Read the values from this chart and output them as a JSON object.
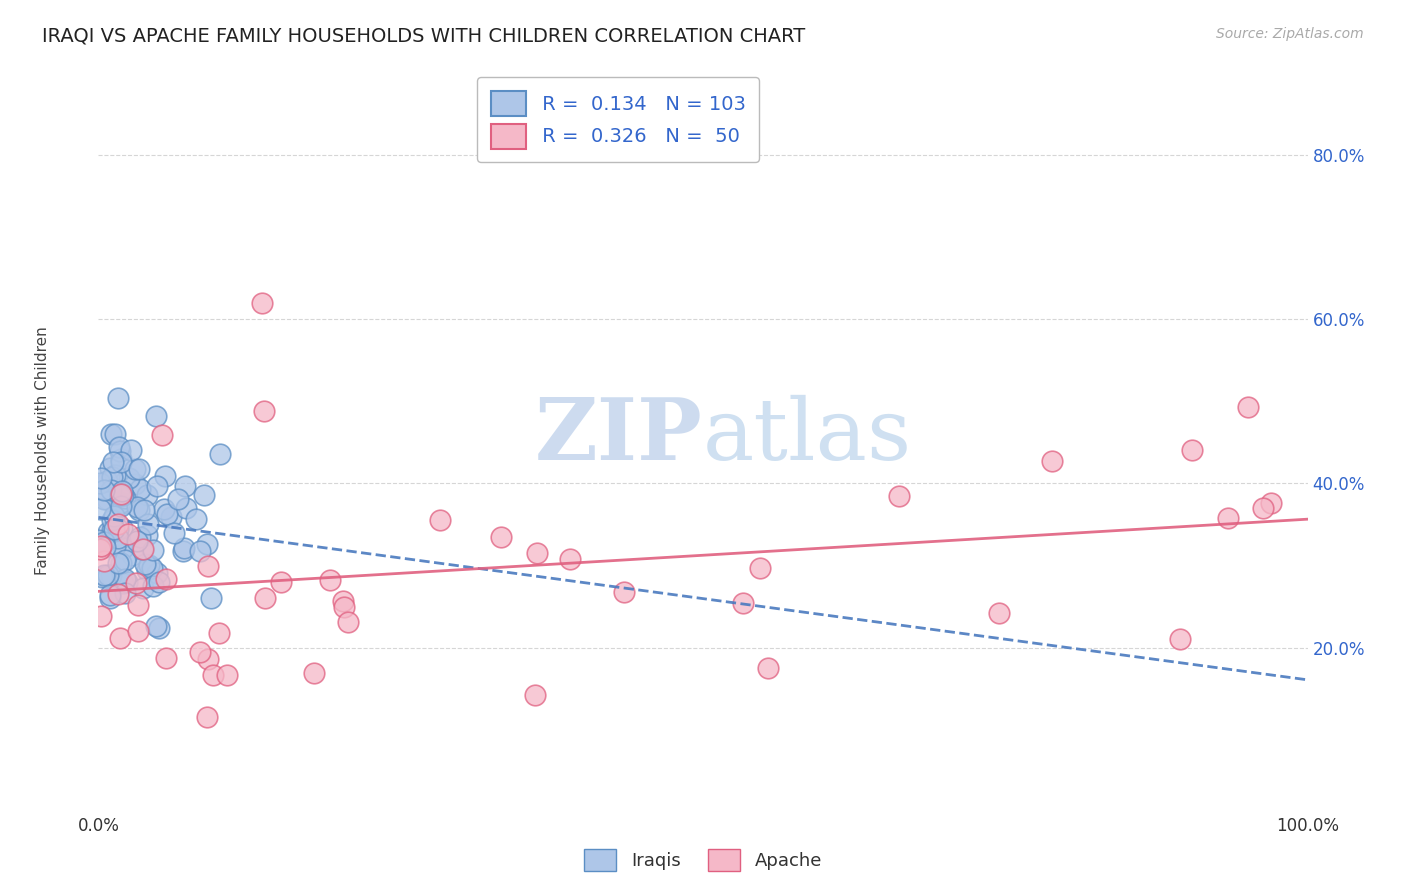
{
  "title": "IRAQI VS APACHE FAMILY HOUSEHOLDS WITH CHILDREN CORRELATION CHART",
  "source": "Source: ZipAtlas.com",
  "ylabel": "Family Households with Children",
  "xlim": [
    0.0,
    1.0
  ],
  "ylim": [
    0.0,
    0.88
  ],
  "xtick_labels": [
    "0.0%",
    "100.0%"
  ],
  "ytick_labels": [
    "20.0%",
    "40.0%",
    "60.0%",
    "80.0%"
  ],
  "ytick_positions": [
    0.2,
    0.4,
    0.6,
    0.8
  ],
  "legend_r_iraqi": "0.134",
  "legend_n_iraqi": "103",
  "legend_r_apache": "0.326",
  "legend_n_apache": "50",
  "iraqi_fill_color": "#aec6e8",
  "iraqi_edge_color": "#5b8ec4",
  "apache_fill_color": "#f5b8c8",
  "apache_edge_color": "#e06080",
  "iraqi_line_color": "#4a7abf",
  "apache_line_color": "#e06080",
  "watermark_color": "#c8d8ee",
  "background_color": "#ffffff",
  "grid_color": "#cccccc",
  "title_fontsize": 14,
  "label_fontsize": 11,
  "tick_fontsize": 12,
  "legend_fontsize": 14,
  "ytick_color": "#3366cc",
  "xtick_color": "#333333"
}
